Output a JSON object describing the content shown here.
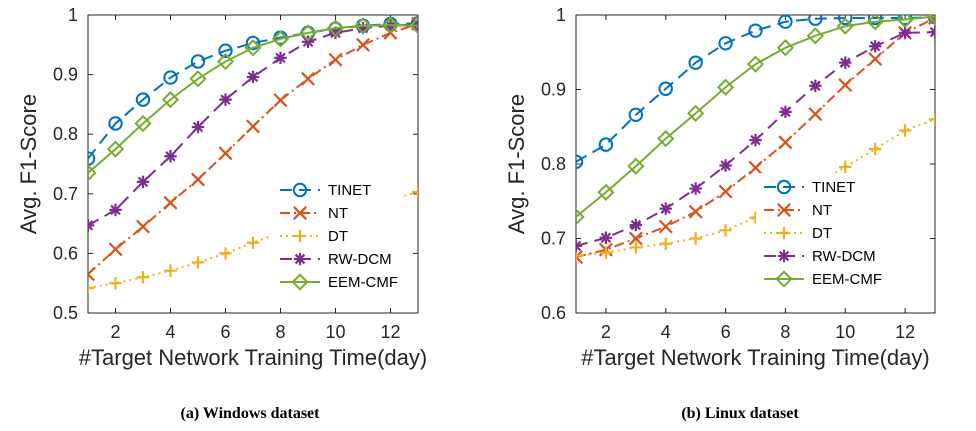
{
  "chart_data": [
    {
      "type": "line",
      "caption": "(a) Windows dataset",
      "xlabel": "#Target Network Training Time(day)",
      "ylabel": "Avg. F1-Score",
      "xlim": [
        1,
        13
      ],
      "ylim": [
        0.5,
        1.0
      ],
      "xticks": [
        2,
        4,
        6,
        8,
        10,
        12
      ],
      "yticks": [
        0.5,
        0.6,
        0.7,
        0.8,
        0.9,
        1
      ],
      "ytick_labels": [
        "0.5",
        "0.6",
        "0.7",
        "0.8",
        "0.9",
        "1"
      ],
      "legend_position": "lower-right",
      "x": [
        1,
        2,
        3,
        4,
        5,
        6,
        7,
        8,
        9,
        10,
        11,
        12,
        13
      ],
      "series": [
        {
          "name": "TINET",
          "color": "#0072BD",
          "marker": "circle",
          "linestyle": "dashed",
          "values": [
            0.759,
            0.818,
            0.858,
            0.895,
            0.922,
            0.94,
            0.953,
            0.962,
            0.97,
            0.977,
            0.982,
            0.985,
            0.986
          ]
        },
        {
          "name": "NT",
          "color": "#D95319",
          "marker": "x",
          "linestyle": "dashdot",
          "values": [
            0.565,
            0.607,
            0.645,
            0.685,
            0.724,
            0.768,
            0.813,
            0.857,
            0.893,
            0.925,
            0.95,
            0.97,
            0.985
          ]
        },
        {
          "name": "DT",
          "color": "#EDB120",
          "marker": "plus",
          "linestyle": "dotted",
          "values": [
            0.542,
            0.55,
            0.56,
            0.571,
            0.585,
            0.6,
            0.618,
            0.635,
            0.65,
            0.665,
            0.678,
            0.69,
            0.703
          ]
        },
        {
          "name": "RW-DCM",
          "color": "#7E2F8E",
          "marker": "star",
          "linestyle": "dashed",
          "values": [
            0.647,
            0.673,
            0.72,
            0.763,
            0.812,
            0.858,
            0.896,
            0.928,
            0.955,
            0.97,
            0.978,
            0.982,
            0.984
          ]
        },
        {
          "name": "EEM-CMF",
          "color": "#77AC30",
          "marker": "diamond",
          "linestyle": "solid",
          "values": [
            0.735,
            0.775,
            0.818,
            0.858,
            0.893,
            0.922,
            0.945,
            0.96,
            0.97,
            0.978,
            0.982,
            0.983,
            0.982
          ]
        }
      ]
    },
    {
      "type": "line",
      "caption": "(b) Linux dataset",
      "xlabel": "#Target Network Training Time(day)",
      "ylabel": "Avg. F1-Score",
      "xlim": [
        1,
        13
      ],
      "ylim": [
        0.6,
        1.0
      ],
      "xticks": [
        2,
        4,
        6,
        8,
        10,
        12
      ],
      "yticks": [
        0.6,
        0.7,
        0.8,
        0.9,
        1
      ],
      "ytick_labels": [
        "0.6",
        "0.7",
        "0.8",
        "0.9",
        "1"
      ],
      "legend_position": "lower-right",
      "x": [
        1,
        2,
        3,
        4,
        5,
        6,
        7,
        8,
        9,
        10,
        11,
        12,
        13
      ],
      "series": [
        {
          "name": "TINET",
          "color": "#0072BD",
          "marker": "circle",
          "linestyle": "dashed",
          "values": [
            0.803,
            0.826,
            0.866,
            0.901,
            0.936,
            0.962,
            0.979,
            0.991,
            0.995,
            0.996,
            0.996,
            0.996,
            0.997
          ]
        },
        {
          "name": "NT",
          "color": "#D95319",
          "marker": "x",
          "linestyle": "dashdot",
          "values": [
            0.675,
            0.685,
            0.7,
            0.716,
            0.736,
            0.763,
            0.795,
            0.829,
            0.867,
            0.906,
            0.941,
            0.976,
            0.996
          ]
        },
        {
          "name": "DT",
          "color": "#EDB120",
          "marker": "plus",
          "linestyle": "dotted",
          "values": [
            0.677,
            0.681,
            0.688,
            0.693,
            0.7,
            0.711,
            0.728,
            0.75,
            0.772,
            0.796,
            0.82,
            0.845,
            0.86
          ]
        },
        {
          "name": "RW-DCM",
          "color": "#7E2F8E",
          "marker": "star",
          "linestyle": "dashed",
          "values": [
            0.69,
            0.701,
            0.718,
            0.74,
            0.767,
            0.798,
            0.832,
            0.87,
            0.905,
            0.936,
            0.958,
            0.976,
            0.977
          ]
        },
        {
          "name": "EEM-CMF",
          "color": "#77AC30",
          "marker": "diamond",
          "linestyle": "solid",
          "values": [
            0.729,
            0.762,
            0.797,
            0.834,
            0.868,
            0.903,
            0.934,
            0.956,
            0.972,
            0.985,
            0.991,
            0.994,
            0.998
          ]
        }
      ]
    }
  ]
}
